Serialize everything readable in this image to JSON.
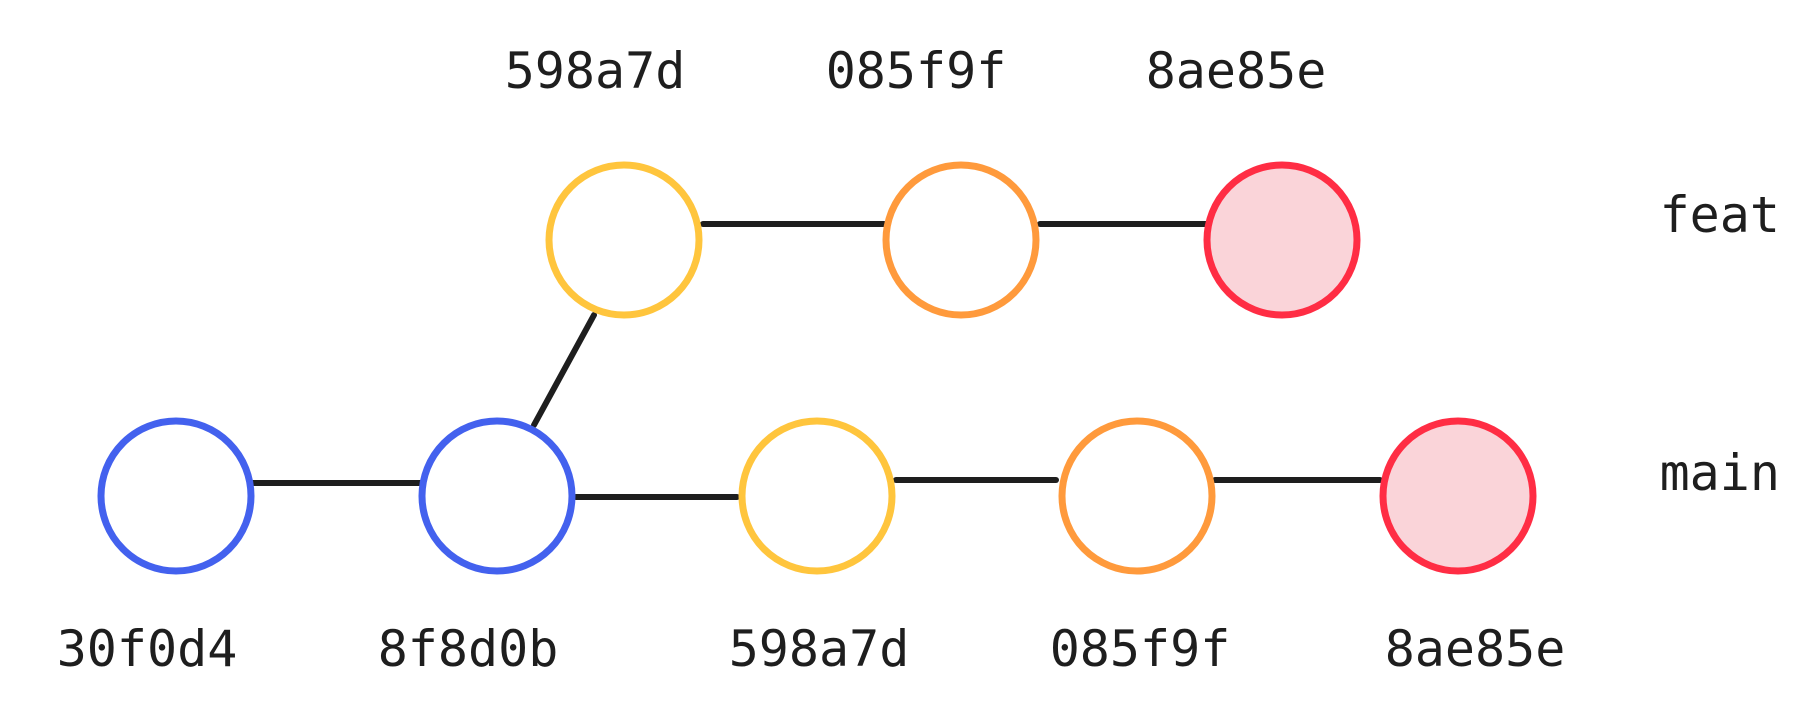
{
  "branches": {
    "feat": {
      "label": "feat"
    },
    "main": {
      "label": "main"
    }
  },
  "colors": {
    "blue": "#4361EE",
    "yellow": "#FFC53D",
    "orange": "#FF9A3C",
    "red": "#FF2D44",
    "red_fill": "#FAD4D9",
    "edge": "#1E1E1E"
  },
  "commits": {
    "main": [
      {
        "hash": "30f0d4",
        "color": "blue"
      },
      {
        "hash": "8f8d0b",
        "color": "blue"
      },
      {
        "hash": "598a7d",
        "color": "yellow"
      },
      {
        "hash": "085f9f",
        "color": "orange"
      },
      {
        "hash": "8ae85e",
        "color": "red",
        "head": true
      }
    ],
    "feat": [
      {
        "hash": "598a7d",
        "color": "yellow"
      },
      {
        "hash": "085f9f",
        "color": "orange"
      },
      {
        "hash": "8ae85e",
        "color": "red",
        "head": true
      }
    ]
  }
}
